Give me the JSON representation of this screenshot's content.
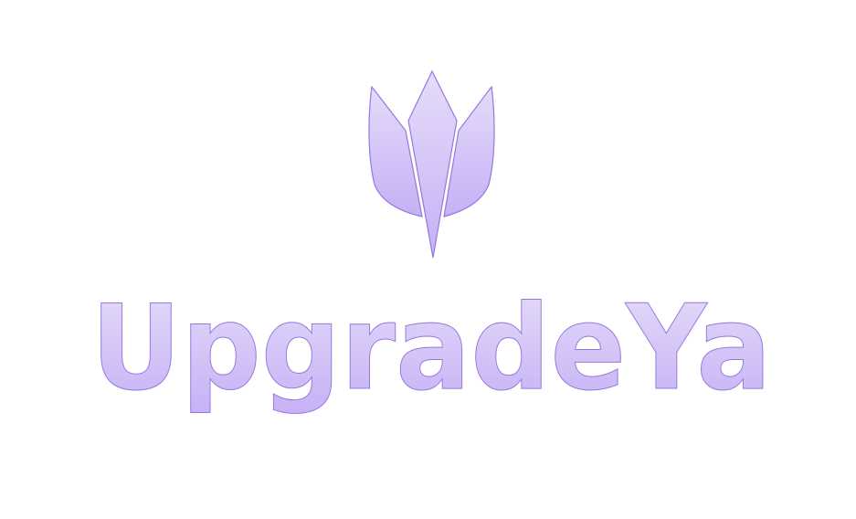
{
  "brand": {
    "wordmark": "UpgradeYa",
    "icon": "tulip-crown-icon",
    "colors": {
      "fill_top": "#e6dcf9",
      "fill_bottom": "#c5b0f6",
      "outline": "#9479dc",
      "background": "#ffffff"
    }
  }
}
